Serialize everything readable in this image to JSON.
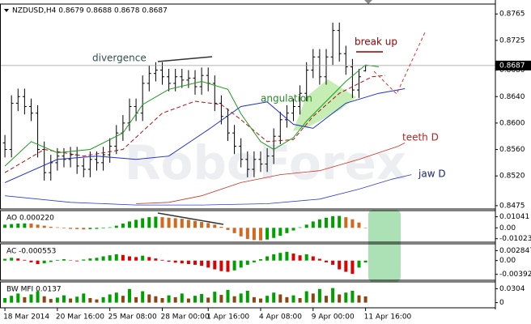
{
  "chart_data": [
    {
      "type": "ohlc",
      "title": "NZDUSD,H4  0.8679 0.8688 0.8678 0.8687",
      "watermark": "RoboForex",
      "categories": [
        "18 Mar 2014",
        null,
        null,
        null,
        null,
        null,
        null,
        null,
        "20 Mar 16:00",
        null,
        null,
        null,
        null,
        null,
        null,
        null,
        "25 Mar 08:00",
        null,
        null,
        null,
        null,
        null,
        null,
        null,
        "28 Mar 00:00",
        null,
        null,
        null,
        null,
        null,
        null,
        "1 Apr 16:00",
        null,
        null,
        null,
        null,
        null,
        null,
        null,
        "4 Apr 08:00",
        null,
        null,
        null,
        null,
        null,
        null,
        null,
        "9 Apr 00:00",
        null,
        null,
        null,
        null,
        null,
        null,
        null,
        "11 Apr 16:00",
        null,
        null,
        null,
        null
      ],
      "open": [
        0.857,
        0.856,
        0.863,
        0.864,
        0.8625,
        0.8615,
        0.856,
        0.8525,
        0.854,
        0.855,
        0.8545,
        0.8552,
        0.8535,
        0.853,
        0.8545,
        0.854,
        0.8552,
        0.8565,
        0.8585,
        0.86,
        0.8625,
        0.8615,
        0.866,
        0.8675,
        0.868,
        0.867,
        0.866,
        0.867,
        0.8665,
        0.8668,
        0.8655,
        0.8672,
        0.866,
        0.863,
        0.861,
        0.8585,
        0.8565,
        0.8545,
        0.853,
        0.8545,
        0.8538,
        0.855,
        0.858,
        0.8605,
        0.8615,
        0.8625,
        0.8645,
        0.868,
        0.87,
        0.867,
        0.87,
        0.874,
        0.8705,
        0.8685,
        0.865,
        0.8679,
        null,
        null,
        null,
        null
      ],
      "high": [
        0.8582,
        0.8642,
        0.8652,
        0.8652,
        0.8637,
        0.8627,
        0.8572,
        0.8552,
        0.8562,
        0.8562,
        0.8564,
        0.8564,
        0.8547,
        0.8557,
        0.8557,
        0.8564,
        0.8577,
        0.8597,
        0.8612,
        0.8637,
        0.8637,
        0.8672,
        0.8687,
        0.8692,
        0.8692,
        0.8682,
        0.8682,
        0.8682,
        0.868,
        0.868,
        0.8684,
        0.8684,
        0.8672,
        0.8642,
        0.8622,
        0.8597,
        0.8577,
        0.8557,
        0.8557,
        0.8557,
        0.8562,
        0.8592,
        0.8617,
        0.8627,
        0.8637,
        0.8657,
        0.8692,
        0.8712,
        0.8712,
        0.8712,
        0.8752,
        0.8752,
        0.8717,
        0.8697,
        0.8682,
        0.8688,
        null,
        null,
        null,
        null
      ],
      "low": [
        0.8548,
        0.8548,
        0.8618,
        0.8613,
        0.8603,
        0.8548,
        0.8513,
        0.8513,
        0.8528,
        0.8533,
        0.8533,
        0.8523,
        0.8518,
        0.8518,
        0.8528,
        0.8528,
        0.854,
        0.8553,
        0.8573,
        0.8588,
        0.8603,
        0.8603,
        0.8648,
        0.8663,
        0.8658,
        0.8648,
        0.8648,
        0.8653,
        0.8653,
        0.8643,
        0.8643,
        0.8648,
        0.8618,
        0.8598,
        0.8573,
        0.8553,
        0.8533,
        0.8518,
        0.8518,
        0.8526,
        0.8526,
        0.8538,
        0.8568,
        0.8593,
        0.8603,
        0.8613,
        0.8633,
        0.8668,
        0.8658,
        0.8658,
        0.8688,
        0.8693,
        0.8673,
        0.8638,
        0.8638,
        0.8678,
        null,
        null,
        null,
        null
      ],
      "close": [
        0.856,
        0.863,
        0.864,
        0.8625,
        0.8615,
        0.856,
        0.8525,
        0.854,
        0.855,
        0.8545,
        0.8552,
        0.8535,
        0.853,
        0.8545,
        0.854,
        0.8552,
        0.8565,
        0.8585,
        0.86,
        0.8625,
        0.8615,
        0.866,
        0.8675,
        0.868,
        0.867,
        0.866,
        0.867,
        0.8665,
        0.8668,
        0.8655,
        0.8672,
        0.866,
        0.863,
        0.861,
        0.8585,
        0.8565,
        0.8545,
        0.853,
        0.8545,
        0.8538,
        0.855,
        0.858,
        0.8605,
        0.8615,
        0.8625,
        0.8645,
        0.868,
        0.87,
        0.867,
        0.87,
        0.874,
        0.8705,
        0.8685,
        0.865,
        0.867,
        0.8687,
        null,
        null,
        null,
        null
      ],
      "color": "#000000",
      "lines": [
        {
          "color": "#2b3fd6",
          "width": 0.8,
          "dashed": false,
          "x": [
            0,
            10,
            20,
            30,
            40,
            48,
            54,
            59,
            62
          ],
          "values": [
            0.849,
            0.848,
            0.8476,
            0.8476,
            0.8478,
            0.8485,
            0.85,
            0.8515,
            0.8522
          ]
        },
        {
          "color": "#d03020",
          "width": 0.8,
          "dashed": false,
          "x": [
            20,
            25,
            30,
            36,
            42,
            48,
            54,
            60,
            61
          ],
          "values": [
            0.8478,
            0.848,
            0.849,
            0.851,
            0.8522,
            0.8528,
            0.8545,
            0.8565,
            0.857
          ]
        },
        {
          "color": "#1f2fd0",
          "width": 1,
          "dashed": false,
          "x": [
            0,
            8,
            14,
            20,
            25,
            31,
            36,
            40,
            44,
            47,
            52,
            57,
            61
          ],
          "values": [
            0.851,
            0.8545,
            0.855,
            0.8545,
            0.855,
            0.859,
            0.8625,
            0.8632,
            0.8598,
            0.8592,
            0.863,
            0.8645,
            0.8652
          ]
        },
        {
          "color": "#b01010",
          "width": 1,
          "dashed": true,
          "x": [
            0,
            6,
            12,
            18,
            24,
            29,
            33,
            36,
            40,
            44,
            47,
            51,
            56,
            58
          ],
          "values": [
            0.8525,
            0.856,
            0.855,
            0.856,
            0.8615,
            0.8633,
            0.8628,
            0.8605,
            0.8572,
            0.8575,
            0.861,
            0.8645,
            0.867,
            0.8672
          ]
        },
        {
          "color": "#1a9a1a",
          "width": 1,
          "dashed": false,
          "x": [
            0,
            4,
            8,
            13,
            18,
            21,
            25,
            30,
            34,
            36,
            39,
            41,
            44,
            46,
            49,
            52,
            55,
            57
          ],
          "values": [
            0.8535,
            0.8572,
            0.8555,
            0.856,
            0.8585,
            0.8628,
            0.8651,
            0.8663,
            0.8651,
            0.8614,
            0.8572,
            0.856,
            0.8578,
            0.8603,
            0.8633,
            0.8663,
            0.8688,
            0.8685
          ]
        }
      ],
      "current_price": {
        "value": 0.8687,
        "label": "0.8687"
      },
      "annotations": [
        "divergence",
        "break up",
        "angulation",
        "teeth D",
        "jaw D"
      ],
      "xlim": [
        -0.75,
        74.8
      ],
      "ylim": [
        0.847,
        0.878
      ],
      "yticks": [
        0.8765,
        0.8725,
        {
          "value": 0.868,
          "label": "0.8680"
        },
        {
          "value": 0.864,
          "label": "0.8640"
        },
        {
          "value": 0.86,
          "label": "0.8600"
        },
        {
          "value": 0.856,
          "label": "0.8560"
        },
        {
          "value": 0.852,
          "label": "0.8520"
        },
        0.8475
      ]
    },
    {
      "type": "bar",
      "title": "AO 0.000220",
      "colors": {
        "up": "#00a000",
        "down": "#d2691e"
      },
      "values": [
        0.003,
        0.0035,
        0.004,
        0.0042,
        0.004,
        0.003,
        0.002,
        0.001,
        0.0005,
        -0.0005,
        -0.001,
        -0.0012,
        -0.0015,
        -0.0012,
        -0.001,
        -0.0005,
        0.0005,
        0.002,
        0.004,
        0.006,
        0.0075,
        0.009,
        0.01,
        0.0105,
        0.01,
        0.0095,
        0.009,
        0.0085,
        0.0075,
        0.0065,
        0.0055,
        0.0045,
        0.003,
        0.001,
        -0.002,
        -0.005,
        -0.008,
        -0.0105,
        -0.0115,
        -0.0118,
        -0.011,
        -0.0095,
        -0.0075,
        -0.005,
        -0.0025,
        0.0005,
        0.003,
        0.006,
        0.008,
        0.0095,
        0.011,
        0.0112,
        0.01,
        0.008,
        0.005,
        0.00022
      ],
      "ylim": [
        -0.0135,
        0.0162
      ],
      "yticks": [
        0.01041,
        {
          "value": 0,
          "label": "0.00"
        },
        -0.01023
      ]
    },
    {
      "type": "bar",
      "title": "AC -0.000553",
      "colors": {
        "up": "#00a000",
        "down": "#e00000"
      },
      "values": [
        0.0005,
        0.0008,
        0.0006,
        0.0002,
        -0.0005,
        -0.001,
        -0.0008,
        -0.0004,
        0.0002,
        0.0004,
        0.0001,
        -0.0002,
        0.0003,
        0.0006,
        0.0008,
        0.0012,
        0.0015,
        0.0018,
        0.0016,
        0.0012,
        0.001,
        0.0014,
        0.001,
        0.0006,
        0.0002,
        -0.0003,
        -0.0006,
        -0.0008,
        -0.001,
        -0.0012,
        -0.0015,
        -0.002,
        -0.0025,
        -0.003,
        -0.0032,
        -0.0028,
        -0.002,
        -0.0012,
        -0.0005,
        0.0004,
        0.0012,
        0.0018,
        0.0022,
        0.0025,
        0.002,
        0.0015,
        0.0018,
        0.0012,
        0.0005,
        -0.0005,
        -0.0012,
        -0.0025,
        -0.0032,
        -0.0038,
        -0.002,
        -0.000553
      ],
      "ylim": [
        -0.00561,
        0.00478
      ],
      "yticks": [
        0.002847,
        {
          "value": 0,
          "label": "0.00"
        },
        -0.00392
      ]
    },
    {
      "type": "bar",
      "title": "BW MFI 0.0137",
      "colors": {
        "up": "#00a000",
        "down": "#8b4513"
      },
      "values": [
        0.01,
        0.015,
        0.02,
        0.012,
        0.018,
        0.025,
        0.014,
        0.008,
        0.011,
        0.016,
        0.009,
        0.013,
        0.02,
        0.01,
        0.007,
        0.012,
        0.018,
        0.022,
        0.015,
        0.03,
        0.012,
        0.025,
        0.018,
        0.014,
        0.01,
        0.016,
        0.012,
        0.02,
        0.009,
        0.015,
        0.019,
        0.011,
        0.024,
        0.017,
        0.028,
        0.014,
        0.02,
        0.026,
        0.012,
        0.009,
        0.015,
        0.022,
        0.018,
        0.012,
        0.016,
        0.01,
        0.025,
        0.02,
        0.03,
        0.015,
        0.032,
        0.018,
        0.022,
        0.026,
        0.016,
        0.0137
      ],
      "ylim": [
        -0.0114,
        0.0456
      ],
      "yticks": [
        0.0304,
        0
      ]
    }
  ]
}
